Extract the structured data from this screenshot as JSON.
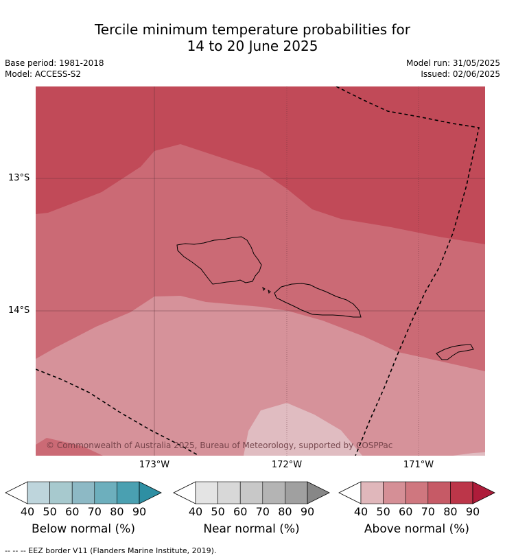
{
  "title_line1": "Tercile minimum temperature probabilities for",
  "title_line2": "14 to 20 June 2025",
  "base_period": "Base period: 1981-2018",
  "model": "Model: ACCESS-S2",
  "model_run": "Model run: 31/05/2025",
  "issued": "Issued: 02/06/2025",
  "lat_labels": [
    "13°S",
    "14°S"
  ],
  "lon_labels": [
    "173°W",
    "172°W",
    "171°W"
  ],
  "copyright": "© Commonwealth of Australia 2025, Bureau of Meteorology, supported by COSPPac",
  "colorbars": [
    {
      "name": "Below normal (%)",
      "ticks": [
        "40",
        "50",
        "60",
        "70",
        "80",
        "90"
      ],
      "colors": [
        "#bed5dc",
        "#a7c9ce",
        "#8db9c5",
        "#6dafbd",
        "#4aa0b1",
        "#2e8fa3"
      ]
    },
    {
      "name": "Near normal (%)",
      "ticks": [
        "40",
        "50",
        "60",
        "70",
        "80",
        "90"
      ],
      "colors": [
        "#e4e4e4",
        "#d8d8d8",
        "#c8c8c8",
        "#b4b4b4",
        "#a0a0a0",
        "#878787"
      ]
    },
    {
      "name": "Above normal (%)",
      "ticks": [
        "40",
        "50",
        "60",
        "70",
        "80",
        "90"
      ],
      "colors": [
        "#e0b7bb",
        "#d58f96",
        "#cf777f",
        "#c65a66",
        "#bc3649",
        "#ae1c3a"
      ]
    }
  ],
  "footer": "--  --  -- EEZ border V11 (Flanders Marine Institute, 2019).",
  "colors": {
    "above_80": "#c14a58",
    "above_70": "#cb6a75",
    "above_60_low": "#d6929a",
    "above_50": "#e0bcc1"
  }
}
